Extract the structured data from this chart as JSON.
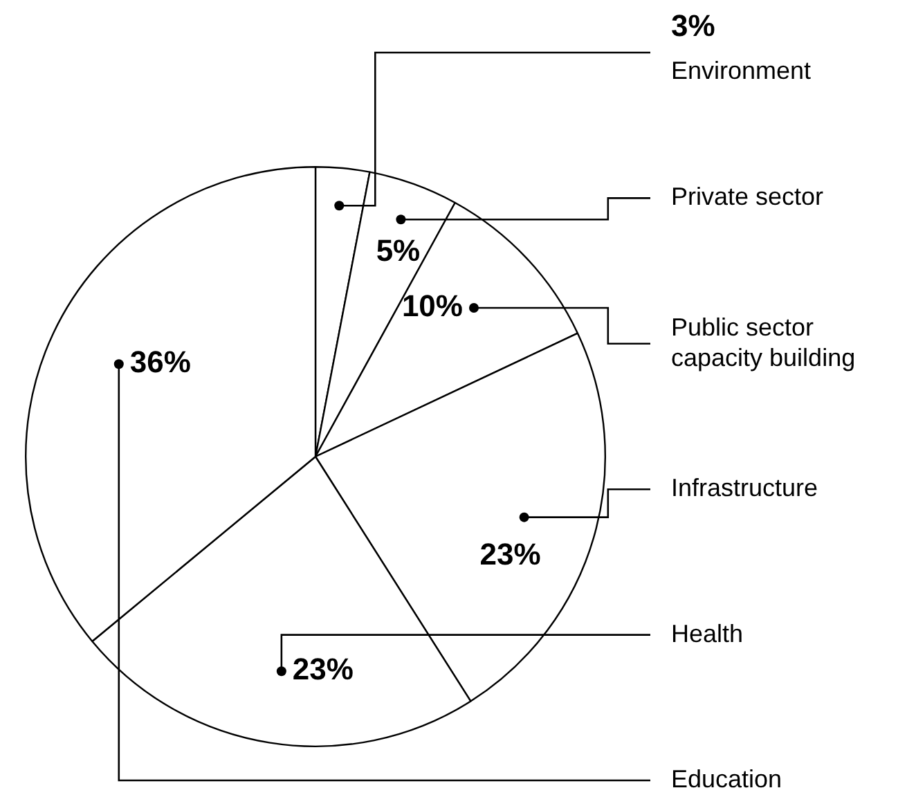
{
  "chart_data": {
    "type": "pie",
    "categories": [
      "Environment",
      "Private sector",
      "Public sector capacity building",
      "Infrastructure",
      "Health",
      "Education"
    ],
    "values": [
      3,
      5,
      10,
      23,
      23,
      36
    ],
    "colors": [
      "#ffffff",
      "#ffffff",
      "#ffffff",
      "#ffffff",
      "#ffffff",
      "#ffffff"
    ],
    "value_labels": [
      "3%",
      "5%",
      "10%",
      "23%",
      "23%",
      "36%"
    ],
    "legend": false
  }
}
